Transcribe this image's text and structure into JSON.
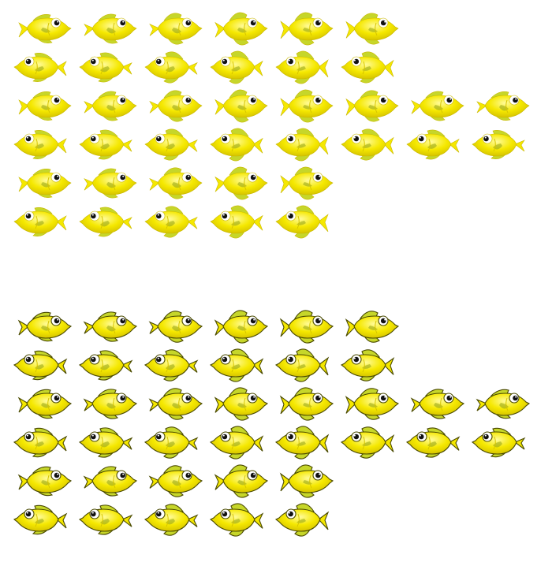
{
  "sprite_sheets": [
    {
      "id": "sheet-top",
      "style": "smooth",
      "outline": "#c9b800",
      "rows": [
        {
          "frames": 6,
          "facing": "right"
        },
        {
          "frames": 6,
          "facing": "left"
        },
        {
          "frames": 8,
          "facing": "right"
        },
        {
          "frames": 8,
          "facing": "left"
        },
        {
          "frames": 5,
          "facing": "right"
        },
        {
          "frames": 5,
          "facing": "left"
        }
      ]
    },
    {
      "id": "sheet-bottom",
      "style": "outlined",
      "outline": "#4a4a00",
      "rows": [
        {
          "frames": 6,
          "facing": "right"
        },
        {
          "frames": 6,
          "facing": "left"
        },
        {
          "frames": 8,
          "facing": "right"
        },
        {
          "frames": 8,
          "facing": "left"
        },
        {
          "frames": 5,
          "facing": "right"
        },
        {
          "frames": 5,
          "facing": "left"
        }
      ]
    }
  ],
  "colors": {
    "body": "#f5e800",
    "body_highlight": "#fffb9a",
    "body_shadow": "#d6c400",
    "fin": "#c6d62a",
    "fin_dark": "#8fa01a",
    "eye_white": "#ffffff",
    "pupil": "#111111"
  },
  "sprite_icon": "yellow-tang-fish-icon"
}
